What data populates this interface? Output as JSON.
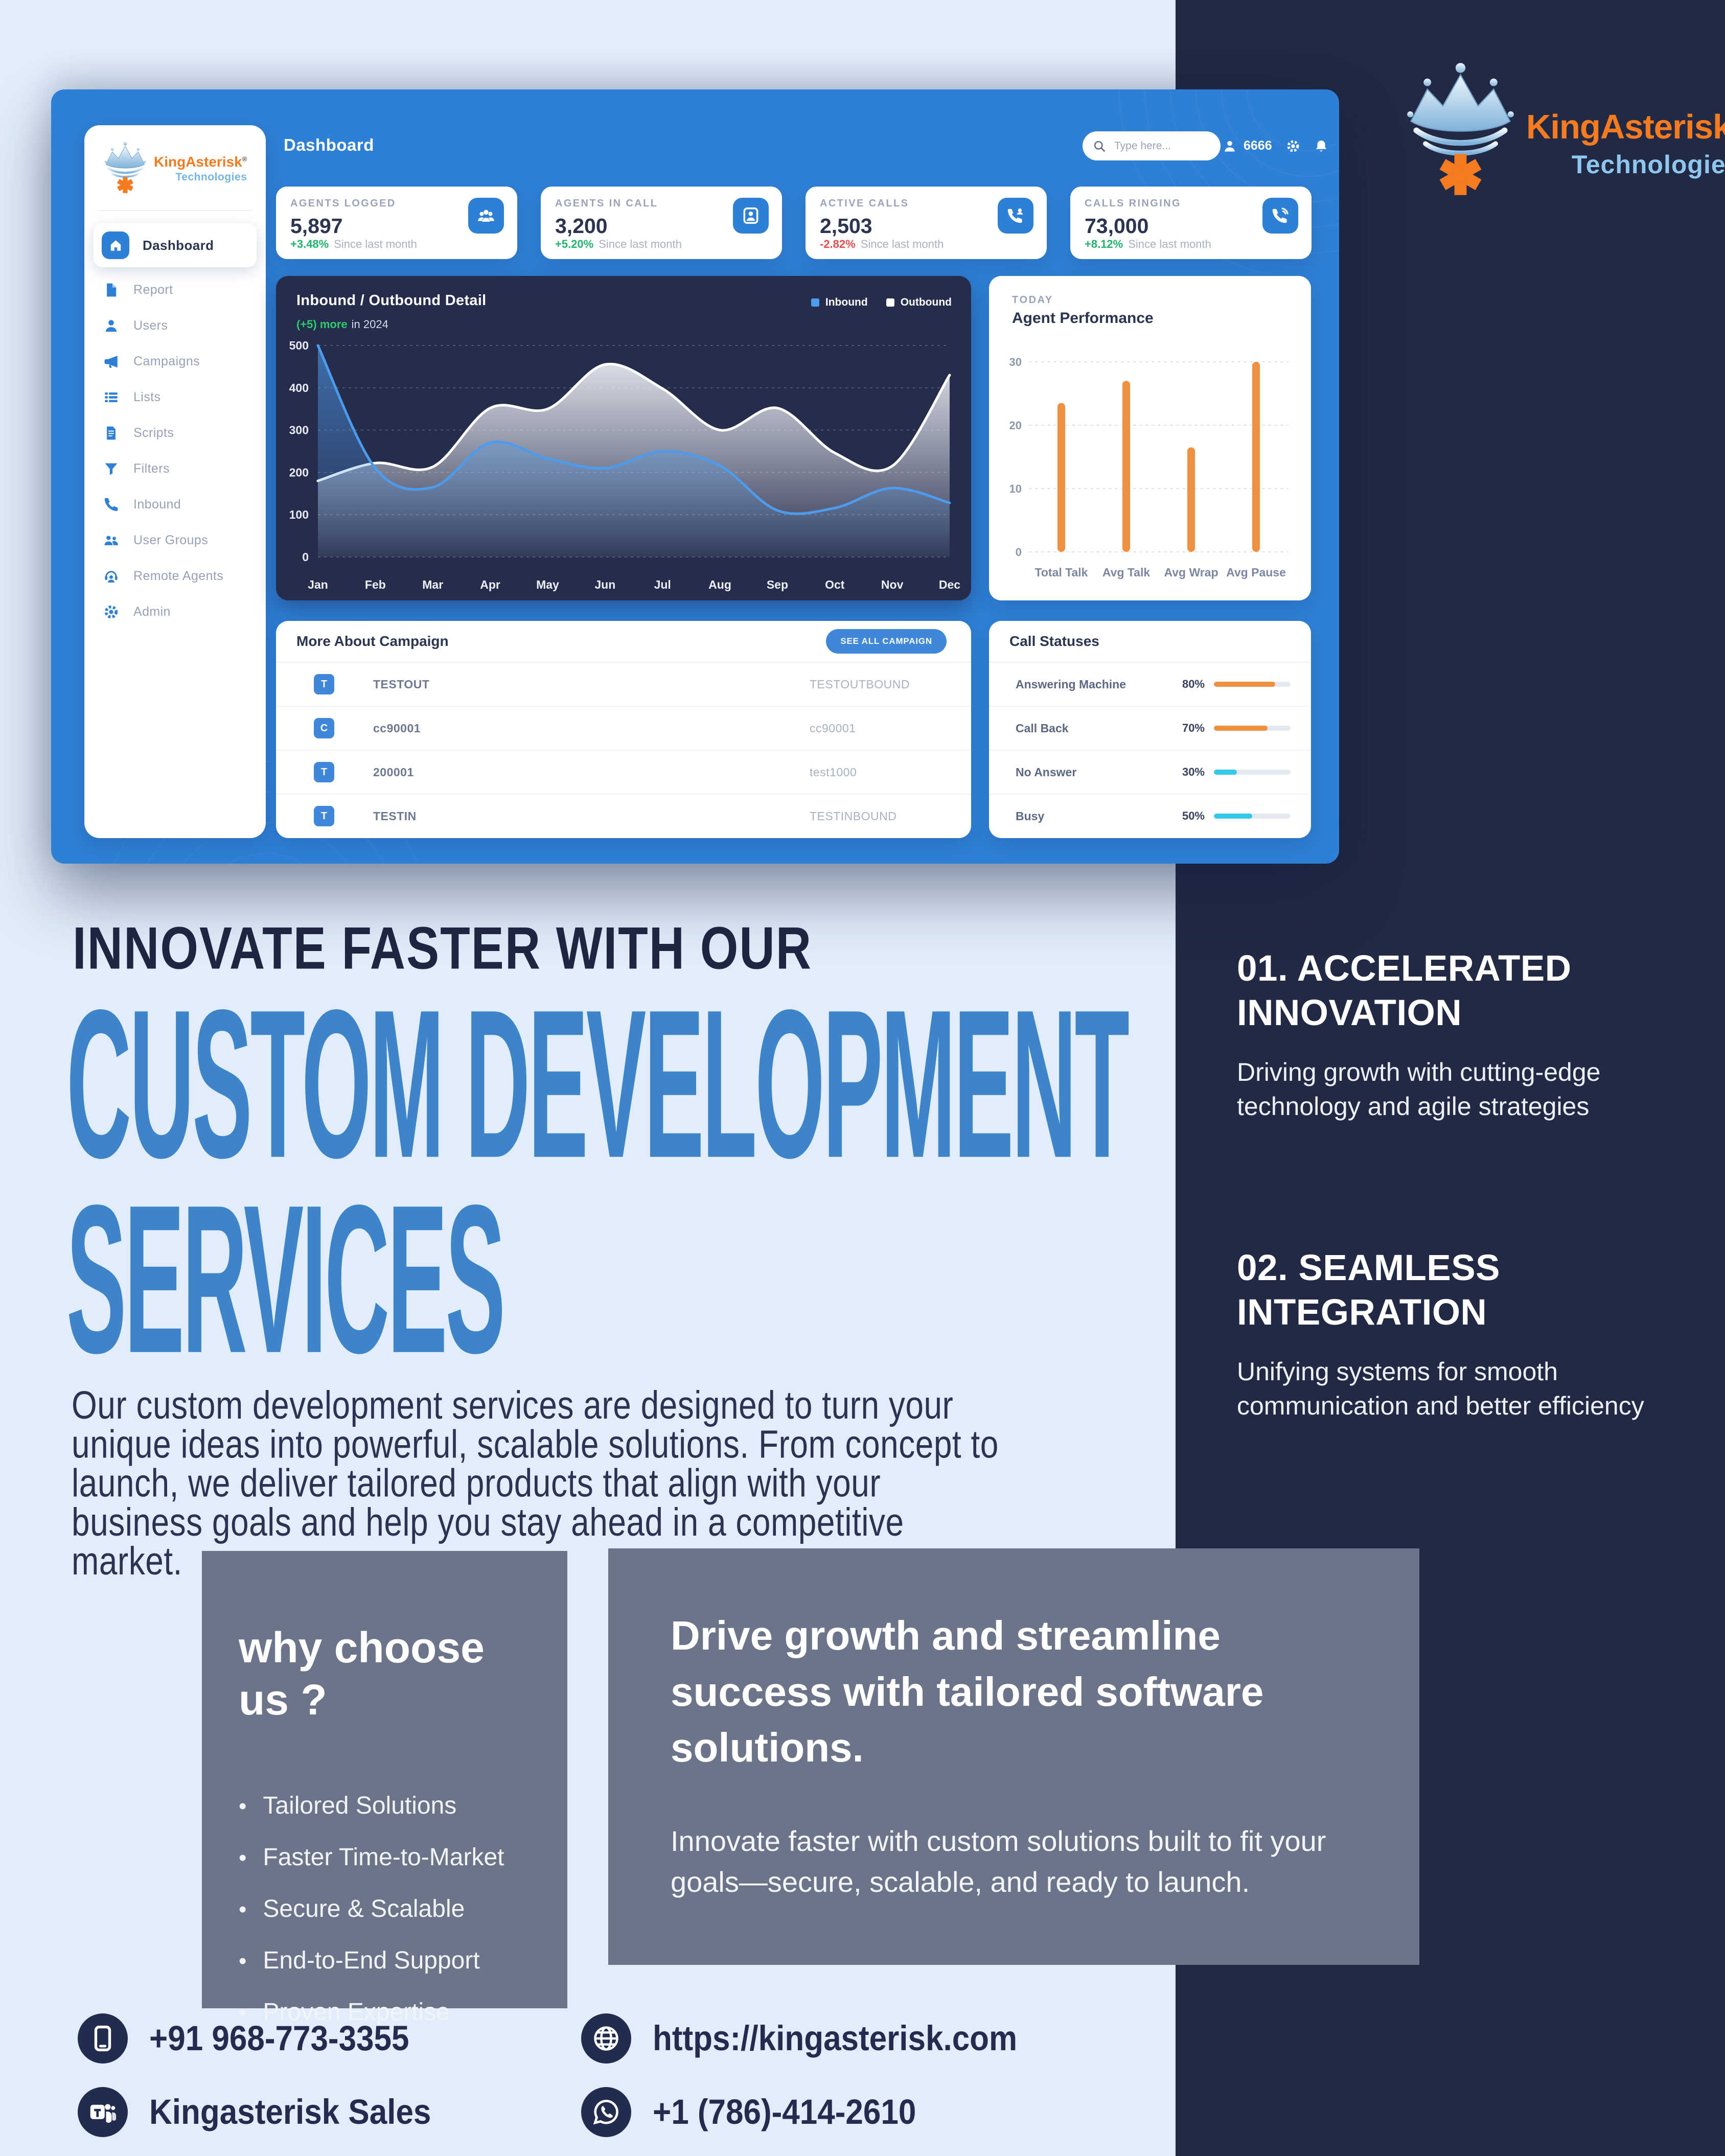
{
  "logo": {
    "title": "KingAsterisk",
    "reg": "®",
    "subtitle": "Technologies"
  },
  "dashboard": {
    "page_title": "Dashboard",
    "topbar": {
      "search_placeholder": "Type here...",
      "user_id": "6666"
    },
    "sidebar": {
      "items": [
        {
          "label": "Dashboard",
          "icon": "home-icon",
          "active": true
        },
        {
          "label": "Report",
          "icon": "report-icon",
          "active": false
        },
        {
          "label": "Users",
          "icon": "user-icon",
          "active": false
        },
        {
          "label": "Campaigns",
          "icon": "megaphone-icon",
          "active": false
        },
        {
          "label": "Lists",
          "icon": "list-icon",
          "active": false
        },
        {
          "label": "Scripts",
          "icon": "script-icon",
          "active": false
        },
        {
          "label": "Filters",
          "icon": "filter-icon",
          "active": false
        },
        {
          "label": "Inbound",
          "icon": "phone-icon",
          "active": false
        },
        {
          "label": "User Groups",
          "icon": "user-group-icon",
          "active": false
        },
        {
          "label": "Remote Agents",
          "icon": "headset-icon",
          "active": false
        },
        {
          "label": "Admin",
          "icon": "gear-icon",
          "active": false
        }
      ]
    },
    "stats": [
      {
        "label": "AGENTS LOGGED",
        "value": "5,897",
        "delta": "+3.48%",
        "trend": "up",
        "note": "Since last month",
        "icon": "agents-group-icon"
      },
      {
        "label": "AGENTS IN CALL",
        "value": "3,200",
        "delta": "+5.20%",
        "trend": "up",
        "note": "Since last month",
        "icon": "person-badge-icon"
      },
      {
        "label": "ACTIVE CALLS",
        "value": "2,503",
        "delta": "-2.82%",
        "trend": "down",
        "note": "Since last month",
        "icon": "phone-call-icon"
      },
      {
        "label": "CALLS RINGING",
        "value": "73,000",
        "delta": "+8.12%",
        "trend": "up",
        "note": "Since last month",
        "icon": "phone-ring-icon"
      }
    ],
    "campaigns": {
      "title": "More About Campaign",
      "button_label": "SEE ALL CAMPAIGN",
      "rows": [
        {
          "badge": "T",
          "name": "TESTOUT",
          "detail": "TESTOUTBOUND"
        },
        {
          "badge": "C",
          "name": "cc90001",
          "detail": "cc90001"
        },
        {
          "badge": "T",
          "name": "200001",
          "detail": "test1000"
        },
        {
          "badge": "T",
          "name": "TESTIN",
          "detail": "TESTINBOUND"
        }
      ]
    },
    "call_statuses": {
      "title": "Call Statuses",
      "rows": [
        {
          "label": "Answering Machine",
          "pct": "80%",
          "value": 80,
          "color": "#ef9040"
        },
        {
          "label": "Call Back",
          "pct": "70%",
          "value": 70,
          "color": "#ef9040"
        },
        {
          "label": "No Answer",
          "pct": "30%",
          "value": 30,
          "color": "#35c7e8"
        },
        {
          "label": "Busy",
          "pct": "50%",
          "value": 50,
          "color": "#35c7e8"
        }
      ]
    }
  },
  "chart_data": [
    {
      "type": "area",
      "title": "Inbound / Outbound Detail",
      "subtitle_highlight": "(+5) more",
      "subtitle_rest": "in 2024",
      "legend_position": "top-right",
      "categories": [
        "Jan",
        "Feb",
        "Mar",
        "Apr",
        "May",
        "Jun",
        "Jul",
        "Aug",
        "Sep",
        "Oct",
        "Nov",
        "Dec"
      ],
      "ylim": [
        0,
        500
      ],
      "yticks": [
        0,
        100,
        200,
        300,
        400,
        500
      ],
      "grid": true,
      "series": [
        {
          "name": "Inbound",
          "color": "#4d9bec",
          "values": [
            500,
            210,
            165,
            270,
            233,
            210,
            250,
            216,
            110,
            116,
            163,
            128
          ]
        },
        {
          "name": "Outbound",
          "color": "#ffffff",
          "values": [
            180,
            222,
            213,
            352,
            350,
            455,
            398,
            300,
            352,
            246,
            215,
            430
          ]
        }
      ]
    },
    {
      "type": "bar",
      "kicker": "TODAY",
      "title": "Agent Performance",
      "categories": [
        "Total Talk",
        "Avg Talk",
        "Avg Wrap",
        "Avg Pause"
      ],
      "values": [
        23.5,
        27,
        16.5,
        30
      ],
      "ylim": [
        0,
        30
      ],
      "yticks": [
        0,
        10,
        20,
        30
      ],
      "bar_color": "#ef9040",
      "grid": true
    }
  ],
  "hero": {
    "kicker": "INNOVATE FASTER WITH OUR",
    "line1": "CUSTOM DEVELOPMENT",
    "line2": "SERVICES",
    "body": "Our custom development services are designed to turn your unique ideas into powerful, scalable solutions. From concept to launch, we deliver tailored products that align with your business goals and help you stay ahead in a competitive market."
  },
  "features": [
    {
      "heading": "01. ACCELERATED INNOVATION",
      "body": "Driving growth with cutting-edge technology and agile strategies"
    },
    {
      "heading": "02. SEAMLESS INTEGRATION",
      "body": "Unifying systems for smooth communication and better efficiency"
    }
  ],
  "why_choose": {
    "title": "why choose us ?",
    "bullets": [
      "Tailored Solutions",
      "Faster Time-to-Market",
      "Secure & Scalable",
      "End-to-End Support",
      "Proven Expertise"
    ]
  },
  "drive": {
    "heading": "Drive growth and streamline success with tailored software solutions.",
    "body": "Innovate faster with custom solutions built to fit your goals—secure, scalable, and ready to launch."
  },
  "contacts": [
    {
      "icon": "mobile-icon",
      "text": "+91 968-773-3355"
    },
    {
      "icon": "globe-icon",
      "text": "https://kingasterisk.com"
    },
    {
      "icon": "teams-icon",
      "text": "Kingasterisk Sales"
    },
    {
      "icon": "whatsapp-icon",
      "text": "+1 (786)-414-2610"
    }
  ],
  "colors": {
    "page_bg": "#e1edfa",
    "navy_column": "#222944",
    "dashboard_blue": "#2e7fd6",
    "panel_navy": "#262c4b",
    "heading_blue": "#3d85c8",
    "heading_navy": "#1e2742",
    "gray_box": "#6b7489",
    "orange": "#ef9040",
    "cyan": "#35c7e8",
    "green": "#21b36b",
    "red": "#e64c4c",
    "logo_orange": "#f47b20",
    "logo_blue": "#8ec7ee"
  }
}
